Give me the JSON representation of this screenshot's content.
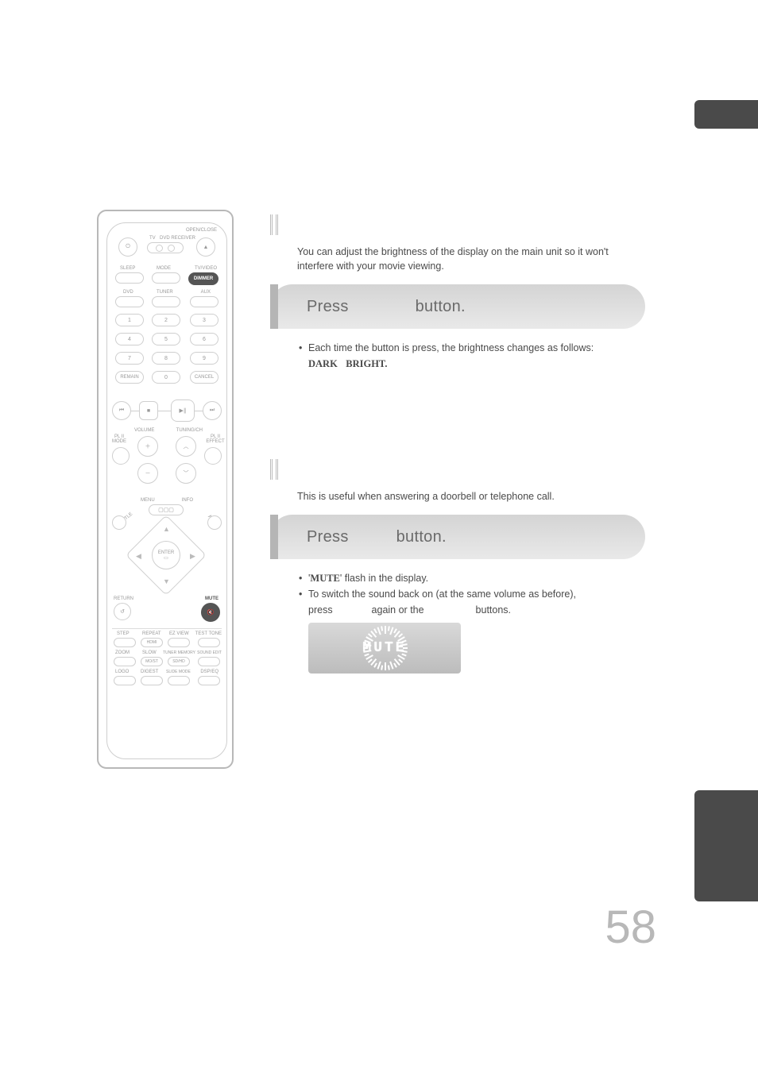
{
  "page_number": "58",
  "tabs": {
    "top_color": "#4a4a4a",
    "side_color": "#6a6a6a"
  },
  "remote": {
    "labels": {
      "open_close": "OPEN/CLOSE",
      "tv": "TV",
      "receiver": "DVD RECEIVER",
      "sleep": "SLEEP",
      "mode": "MODE",
      "tv_video": "TV/VIDEO",
      "dimmer": "DIMMER",
      "dvd": "DVD",
      "tuner": "TUNER",
      "aux": "AUX",
      "remain": "REMAIN",
      "cancel": "CANCEL",
      "volume": "VOLUME",
      "tuning": "TUNING/CH",
      "pl_mode": "PL II\nMODE",
      "pl_effect": "PL II\nEFFECT",
      "menu": "MENU",
      "info": "INFO",
      "subtitle": "SUBTITLE",
      "audio": "AUDIO",
      "enter": "ENTER",
      "return": "RETURN",
      "mute": "MUTE",
      "step": "STEP",
      "repeat": "REPEAT",
      "ezview": "EZ VIEW",
      "testtone": "TEST TONE",
      "zoom": "ZOOM",
      "slow": "SLOW",
      "tuner_mem": "TUNER MEMORY",
      "soundedit": "SOUND EDIT",
      "logo": "LOGO",
      "digest": "DIGEST",
      "slidemode": "SLIDE MODE",
      "dsp_eq": "DSP/EQ",
      "hdmi": "HDMI",
      "mo_st": "MO/ST",
      "sd_hd": "SD/HD"
    },
    "numpad": [
      "1",
      "2",
      "3",
      "4",
      "5",
      "6",
      "7",
      "8",
      "9",
      "0"
    ]
  },
  "sections": {
    "dimmer": {
      "intro": "You can adjust the brightness of the display on the main unit so it won't interfere with your movie viewing.",
      "step_press": "Press",
      "step_button": "button.",
      "bullet": "Each time the button is press, the brightness changes as follows:",
      "seq_dark": "DARK",
      "seq_bright": "BRIGHT",
      "seq_period": "."
    },
    "mute": {
      "intro": "This is useful when answering a doorbell or telephone call.",
      "step_press": "Press",
      "step_button": "button.",
      "b1_a": "'",
      "b1_mute": "MUTE",
      "b1_b": "' flash in the display.",
      "b2": "To switch the sound back on (at the same volume as before),",
      "sub_press": "press",
      "sub_again": "again or the",
      "sub_buttons": "buttons.",
      "display_text": "MUTE"
    }
  },
  "colors": {
    "text": "#4a4a4a",
    "light": "#b8b8b8",
    "bar_top": "#d4d4d4",
    "bar_bottom": "#e9e9e9",
    "accent": "#b5b5b5"
  }
}
